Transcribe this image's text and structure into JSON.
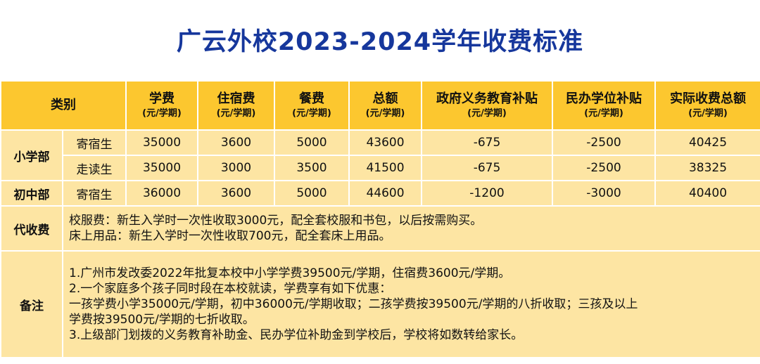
{
  "title": "广云外校2023-2024学年收费标准",
  "table": {
    "category_header": "类别",
    "columns": [
      {
        "label": "学费",
        "unit": "(元/学期)"
      },
      {
        "label": "住宿费",
        "unit": "(元/学期)"
      },
      {
        "label": "餐费",
        "unit": "(元/学期)"
      },
      {
        "label": "总额",
        "unit": "(元/学期)"
      },
      {
        "label": "政府义务教育补贴",
        "unit": "(元/学期)"
      },
      {
        "label": "民办学位补贴",
        "unit": "(元/学期)"
      },
      {
        "label": "实际收费总额",
        "unit": "(元/学期)"
      }
    ],
    "groups": [
      {
        "name": "小学部",
        "rows": [
          {
            "type": "寄宿生",
            "values": [
              "35000",
              "3600",
              "5000",
              "43600",
              "-675",
              "-2500",
              "40425"
            ]
          },
          {
            "type": "走读生",
            "values": [
              "35000",
              "3000",
              "3500",
              "41500",
              "-675",
              "-2500",
              "38325"
            ]
          }
        ]
      },
      {
        "name": "初中部",
        "rows": [
          {
            "type": "寄宿生",
            "values": [
              "36000",
              "3600",
              "5000",
              "44600",
              "-1200",
              "-3000",
              "40400"
            ]
          }
        ]
      }
    ],
    "collect": {
      "label": "代收费",
      "lines": [
        "校服费：新生入学时一次性收取3000元，配全套校服和书包，以后按需购买。",
        "床上用品：新生入学时一次性收取700元，配全套床上用品。"
      ]
    },
    "remarks": {
      "label": "备注",
      "lines": [
        "1.广州市发改委2022年批复本校中小学学费39500元/学期，住宿费3600元/学期。",
        "2.一个家庭多个孩子同时段在本校就读，学费享有如下优惠：",
        "一孩学费小学35000元/学期，初中36000元/学期收取；二孩学费按39500元/学期的八折收取；三孩及以上",
        "学费按39500元/学期的七折收取。",
        "3.上级部门划拨的义务教育补助金、民办学位补助金到学校后，学校将如数转给家长。"
      ]
    }
  },
  "colors": {
    "title": "#16379c",
    "header_bg": "#fcc72f",
    "cell_bg": "#fde5a3",
    "border": "#ffffff"
  }
}
